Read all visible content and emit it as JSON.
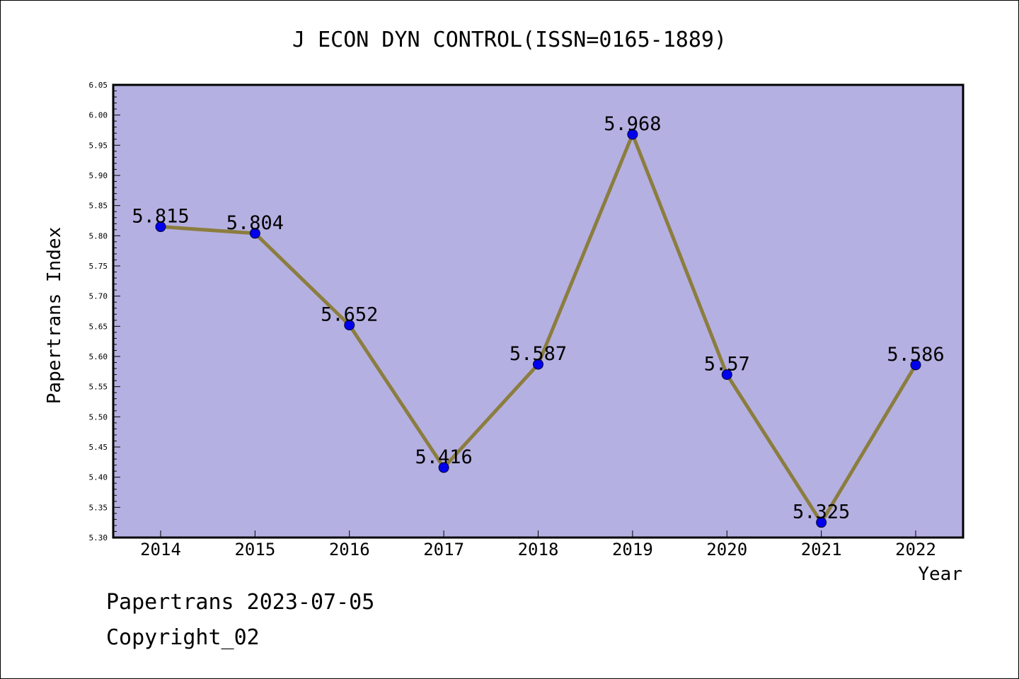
{
  "chart_data": {
    "type": "line",
    "title": "J ECON DYN CONTROL(ISSN=0165-1889)",
    "xlabel": "Year",
    "ylabel": "Papertrans Index",
    "categories": [
      "2014",
      "2015",
      "2016",
      "2017",
      "2018",
      "2019",
      "2020",
      "2021",
      "2022"
    ],
    "values": [
      5.815,
      5.804,
      5.652,
      5.416,
      5.587,
      5.968,
      5.57,
      5.325,
      5.586
    ],
    "data_labels": [
      "5.815",
      "5.804",
      "5.652",
      "5.416",
      "5.587",
      "5.968",
      "5.57",
      "5.325",
      "5.586"
    ],
    "ylim": [
      5.3,
      6.05
    ],
    "yticks": [
      "5.30",
      "5.35",
      "5.40",
      "5.45",
      "5.50",
      "5.55",
      "5.60",
      "5.65",
      "5.70",
      "5.75",
      "5.80",
      "5.85",
      "5.90",
      "5.95",
      "6.00",
      "6.05"
    ],
    "grid": false,
    "colors": {
      "plot_background": "#b5b0e2",
      "line": "#8b7d3e",
      "marker": "#0000ee"
    }
  },
  "footer": {
    "line1": "Papertrans 2023-07-05",
    "line2": "Copyright_02"
  }
}
